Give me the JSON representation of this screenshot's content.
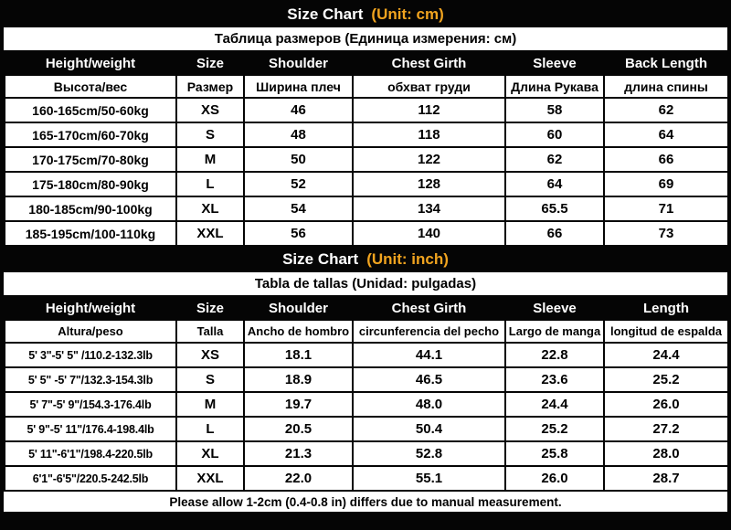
{
  "colors": {
    "accent_gold": "#F1A41F",
    "header_bg": "#000000",
    "cell_bg": "#FFFFFF",
    "text": "#000000"
  },
  "chart_data": [
    {
      "type": "table",
      "title": "Size Chart",
      "unit_label": "(Unit: cm)",
      "subtitle": "Таблица размеров (Единица измерения: см)",
      "columns_en": [
        "Height/weight",
        "Size",
        "Shoulder",
        "Chest Girth",
        "Sleeve",
        "Back Length"
      ],
      "columns_localized": [
        "Высота/вес",
        "Размер",
        "Ширина плеч",
        "обхват груди",
        "Длина Рукава",
        "длина спины"
      ],
      "rows": [
        [
          "160-165cm/50-60kg",
          "XS",
          "46",
          "112",
          "58",
          "62"
        ],
        [
          "165-170cm/60-70kg",
          "S",
          "48",
          "118",
          "60",
          "64"
        ],
        [
          "170-175cm/70-80kg",
          "M",
          "50",
          "122",
          "62",
          "66"
        ],
        [
          "175-180cm/80-90kg",
          "L",
          "52",
          "128",
          "64",
          "69"
        ],
        [
          "180-185cm/90-100kg",
          "XL",
          "54",
          "134",
          "65.5",
          "71"
        ],
        [
          "185-195cm/100-110kg",
          "XXL",
          "56",
          "140",
          "66",
          "73"
        ]
      ]
    },
    {
      "type": "table",
      "title": "Size Chart",
      "unit_label": "(Unit: inch)",
      "subtitle": "Tabla de tallas (Unidad: pulgadas)",
      "columns_en": [
        "Height/weight",
        "Size",
        "Shoulder",
        "Chest Girth",
        "Sleeve",
        "Length"
      ],
      "columns_localized": [
        "Altura/peso",
        "Talla",
        "Ancho de hombro",
        "circunferencia del pecho",
        "Largo de manga",
        "longitud de espalda"
      ],
      "rows": [
        [
          "5' 3\"-5' 5\" /110.2-132.3lb",
          "XS",
          "18.1",
          "44.1",
          "22.8",
          "24.4"
        ],
        [
          "5' 5\" -5' 7\"/132.3-154.3lb",
          "S",
          "18.9",
          "46.5",
          "23.6",
          "25.2"
        ],
        [
          "5' 7\"-5' 9\"/154.3-176.4lb",
          "M",
          "19.7",
          "48.0",
          "24.4",
          "26.0"
        ],
        [
          "5' 9\"-5' 11\"/176.4-198.4lb",
          "L",
          "20.5",
          "50.4",
          "25.2",
          "27.2"
        ],
        [
          "5' 11\"-6'1\"/198.4-220.5lb",
          "XL",
          "21.3",
          "52.8",
          "25.8",
          "28.0"
        ],
        [
          "6'1\"-6'5\"/220.5-242.5lb",
          "XXL",
          "22.0",
          "55.1",
          "26.0",
          "28.7"
        ]
      ]
    }
  ],
  "footer": {
    "note": "Please allow 1-2cm (0.4-0.8 in) differs due to manual measurement."
  }
}
